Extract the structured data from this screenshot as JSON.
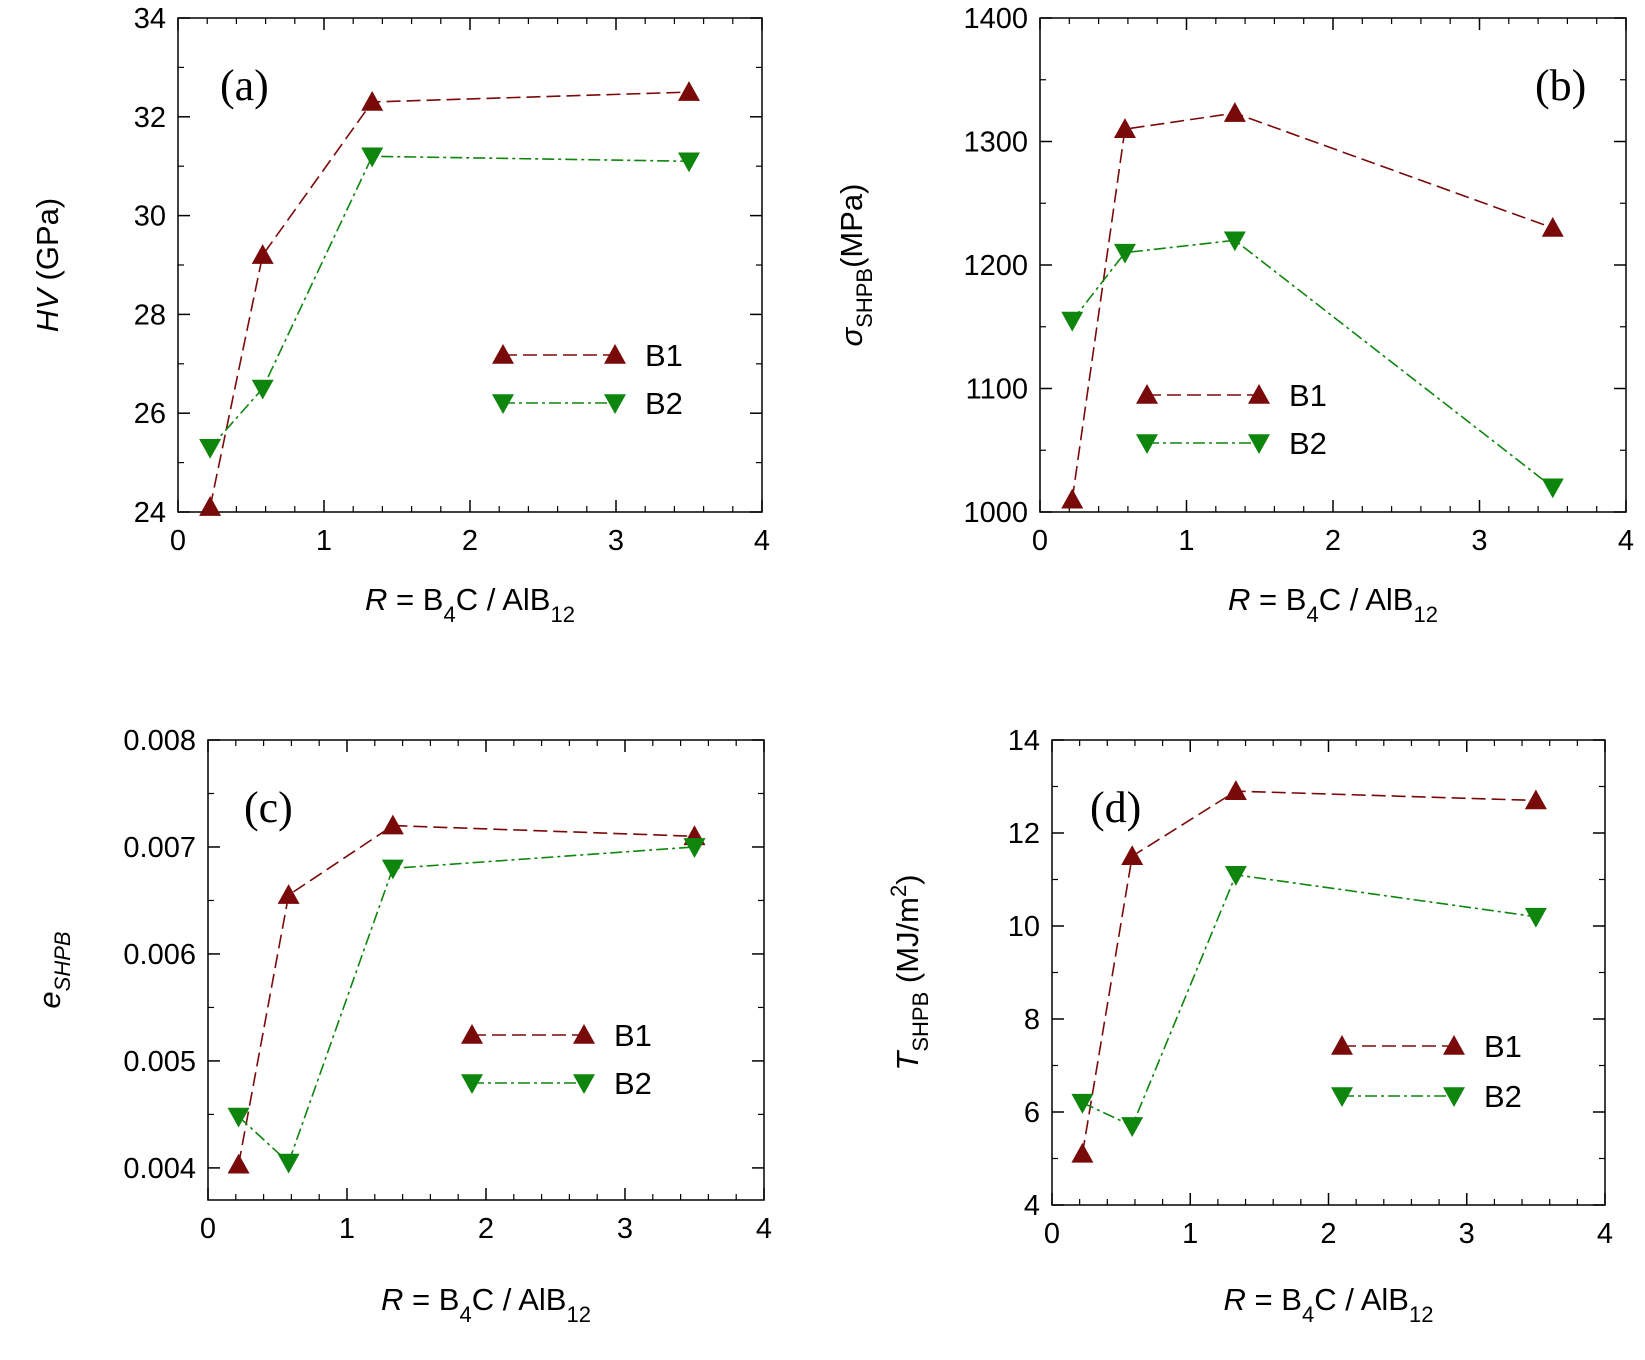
{
  "colors": {
    "b1": "#7a0a0a",
    "b2": "#0e860e"
  },
  "chart_data": [
    {
      "type": "line",
      "panel": "(a)",
      "xlim": [
        0,
        4
      ],
      "ylim": [
        24,
        34
      ],
      "xticks": [
        "0",
        "1",
        "2",
        "3",
        "4"
      ],
      "yticks": [
        "24",
        "26",
        "28",
        "30",
        "32",
        "34"
      ],
      "xlabel": {
        "italic": "R",
        "main": " = B",
        "sub1": "4",
        "mid": "C / AlB",
        "sub2": "12"
      },
      "ylabel": {
        "italic": "HV",
        "plain": " (GPa)"
      },
      "legend": [
        "B1",
        "B2"
      ],
      "legend_position": "middle-right",
      "series": [
        {
          "name": "B1",
          "x": [
            0.22,
            0.58,
            1.33,
            3.5
          ],
          "y": [
            24.1,
            29.2,
            32.3,
            32.5
          ]
        },
        {
          "name": "B2",
          "x": [
            0.22,
            0.58,
            1.33,
            3.5
          ],
          "y": [
            25.3,
            26.5,
            31.2,
            31.1
          ]
        }
      ]
    },
    {
      "type": "line",
      "panel": "(b)",
      "xlim": [
        0,
        4
      ],
      "ylim": [
        1000,
        1400
      ],
      "xticks": [
        "0",
        "1",
        "2",
        "3",
        "4"
      ],
      "yticks": [
        "1000",
        "1100",
        "1200",
        "1300",
        "1400"
      ],
      "xlabel": {
        "italic": "R",
        "main": " = B",
        "sub1": "4",
        "mid": "C / AlB",
        "sub2": "12"
      },
      "ylabel": {
        "symbol": "σ",
        "sub": "SHPB",
        "plain": "(MPa)"
      },
      "legend": [
        "B1",
        "B2"
      ],
      "legend_position": "lower-left",
      "series": [
        {
          "name": "B1",
          "x": [
            0.22,
            0.58,
            1.33,
            3.5
          ],
          "y": [
            1010,
            1310,
            1323,
            1230
          ]
        },
        {
          "name": "B2",
          "x": [
            0.22,
            0.58,
            1.33,
            3.5
          ],
          "y": [
            1155,
            1210,
            1220,
            1020
          ]
        }
      ]
    },
    {
      "type": "line",
      "panel": "(c)",
      "xlim": [
        0,
        4
      ],
      "ylim": [
        0.0037,
        0.008
      ],
      "xticks": [
        "0",
        "1",
        "2",
        "3",
        "4"
      ],
      "yticks": [
        "0.004",
        "0.005",
        "0.006",
        "0.007",
        "0.008"
      ],
      "ytick_values": [
        0.004,
        0.005,
        0.006,
        0.007,
        0.008
      ],
      "xlabel": {
        "italic": "R",
        "main": " = B",
        "sub1": "4",
        "mid": "C / AlB",
        "sub2": "12"
      },
      "ylabel": {
        "italic": "e",
        "sub": "SHPB"
      },
      "legend": [
        "B1",
        "B2"
      ],
      "legend_position": "middle-right",
      "series": [
        {
          "name": "B1",
          "x": [
            0.22,
            0.58,
            1.33,
            3.5
          ],
          "y": [
            0.00403,
            0.00655,
            0.0072,
            0.0071
          ]
        },
        {
          "name": "B2",
          "x": [
            0.22,
            0.58,
            1.33,
            3.5
          ],
          "y": [
            0.00448,
            0.00405,
            0.0068,
            0.007
          ]
        }
      ]
    },
    {
      "type": "line",
      "panel": "(d)",
      "xlim": [
        0,
        4
      ],
      "ylim": [
        4,
        14
      ],
      "xticks": [
        "0",
        "1",
        "2",
        "3",
        "4"
      ],
      "yticks": [
        "4",
        "6",
        "8",
        "10",
        "12",
        "14"
      ],
      "xlabel": {
        "italic": "R",
        "main": " = B",
        "sub1": "4",
        "mid": "C / AlB",
        "sub2": "12"
      },
      "ylabel": {
        "italic": "T",
        "sub": "SHPB",
        "plain": " (MJ/m",
        "sup": "2",
        "close": ")"
      },
      "legend": [
        "B1",
        "B2"
      ],
      "legend_position": "lower-right",
      "series": [
        {
          "name": "B1",
          "x": [
            0.22,
            0.58,
            1.33,
            3.5
          ],
          "y": [
            5.1,
            11.5,
            12.9,
            12.7
          ]
        },
        {
          "name": "B2",
          "x": [
            0.22,
            0.58,
            1.33,
            3.5
          ],
          "y": [
            6.2,
            5.7,
            11.1,
            10.2
          ]
        }
      ]
    }
  ]
}
